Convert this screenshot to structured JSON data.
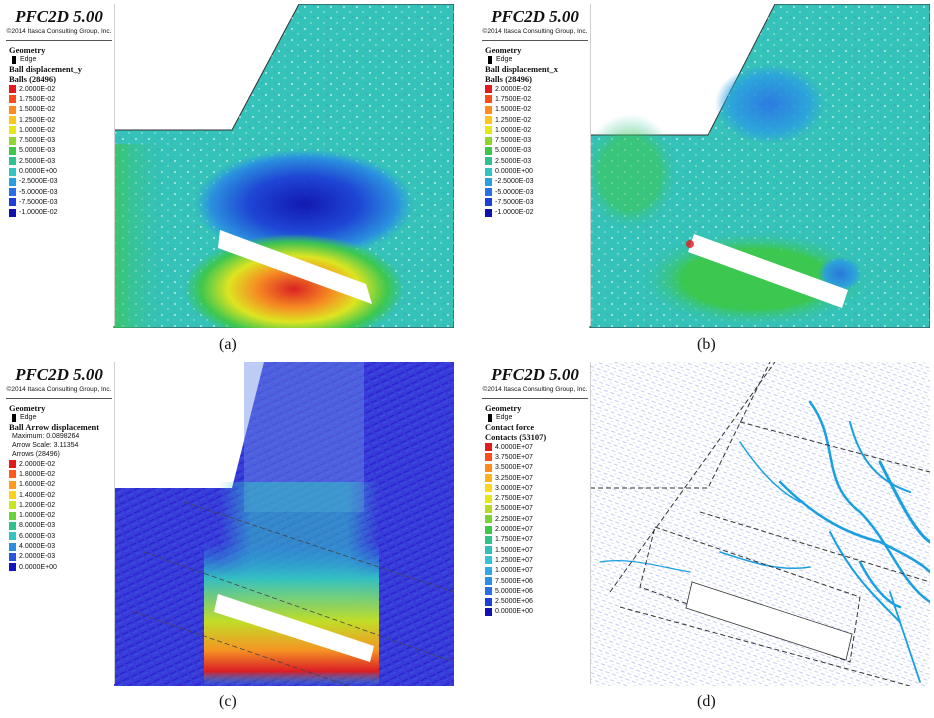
{
  "app_title": "PFC2D 5.00",
  "copyright": "©2014 Itasca Consulting Group, Inc.",
  "geometry_label": "Geometry",
  "edge_label": "Edge",
  "panels": [
    {
      "caption": "(a)",
      "plot_title": "Ball displacement_y",
      "count_label": "Balls (28496)",
      "extra_lines": [],
      "legend": [
        {
          "label": "2.0000E-02",
          "color": "#e31a1c"
        },
        {
          "label": "1.7500E-02",
          "color": "#ff4d1a"
        },
        {
          "label": "1.5000E-02",
          "color": "#ff8c1a"
        },
        {
          "label": "1.2500E-02",
          "color": "#ffc61a"
        },
        {
          "label": "1.0000E-02",
          "color": "#e6e619"
        },
        {
          "label": "7.5000E-03",
          "color": "#8fd62e"
        },
        {
          "label": "5.0000E-03",
          "color": "#3cc74a"
        },
        {
          "label": "2.5000E-03",
          "color": "#2fc28c"
        },
        {
          "label": "0.0000E+00",
          "color": "#33c3c3"
        },
        {
          "label": "-2.5000E-03",
          "color": "#2a9fe0"
        },
        {
          "label": "-5.0000E-03",
          "color": "#2a6fe6"
        },
        {
          "label": "-7.5000E-03",
          "color": "#1d3fd6"
        },
        {
          "label": "-1.0000E-02",
          "color": "#1010b0"
        }
      ]
    },
    {
      "caption": "(b)",
      "plot_title": "Ball displacement_x",
      "count_label": "Balls (28496)",
      "extra_lines": [],
      "legend": [
        {
          "label": "2.0000E-02",
          "color": "#e31a1c"
        },
        {
          "label": "1.7500E-02",
          "color": "#ff4d1a"
        },
        {
          "label": "1.5000E-02",
          "color": "#ff8c1a"
        },
        {
          "label": "1.2500E-02",
          "color": "#ffc61a"
        },
        {
          "label": "1.0000E-02",
          "color": "#e6e619"
        },
        {
          "label": "7.5000E-03",
          "color": "#8fd62e"
        },
        {
          "label": "5.0000E-03",
          "color": "#3cc74a"
        },
        {
          "label": "2.5000E-03",
          "color": "#2fc28c"
        },
        {
          "label": "0.0000E+00",
          "color": "#33c3c3"
        },
        {
          "label": "-2.5000E-03",
          "color": "#2a9fe0"
        },
        {
          "label": "-5.0000E-03",
          "color": "#2a6fe6"
        },
        {
          "label": "-7.5000E-03",
          "color": "#1d3fd6"
        },
        {
          "label": "-1.0000E-02",
          "color": "#1010b0"
        }
      ]
    },
    {
      "caption": "(c)",
      "plot_title": "Ball Arrow displacement",
      "count_label": "",
      "extra_lines": [
        "Maximum: 0.0898264",
        "Arrow Scale: 3.11354",
        "Arrows (28496)"
      ],
      "legend": [
        {
          "label": "2.0000E-02",
          "color": "#e31a1c"
        },
        {
          "label": "1.8000E-02",
          "color": "#ff5a1a"
        },
        {
          "label": "1.6000E-02",
          "color": "#ff9a1a"
        },
        {
          "label": "1.4000E-02",
          "color": "#ffd21a"
        },
        {
          "label": "1.2000E-02",
          "color": "#c8e61e"
        },
        {
          "label": "1.0000E-02",
          "color": "#6ad23a"
        },
        {
          "label": "8.0000E-03",
          "color": "#2fc28c"
        },
        {
          "label": "6.0000E-03",
          "color": "#33c3c3"
        },
        {
          "label": "4.0000E-03",
          "color": "#2a8fe0"
        },
        {
          "label": "2.0000E-03",
          "color": "#2a55e0"
        },
        {
          "label": "0.0000E+00",
          "color": "#1515c0"
        }
      ]
    },
    {
      "caption": "(d)",
      "plot_title": "Contact force",
      "count_label": "Contacts (53107)",
      "extra_lines": [],
      "legend": [
        {
          "label": "4.0000E+07",
          "color": "#e31a1c"
        },
        {
          "label": "3.7500E+07",
          "color": "#ff4d1a"
        },
        {
          "label": "3.5000E+07",
          "color": "#ff8c1a"
        },
        {
          "label": "3.2500E+07",
          "color": "#ffb21a"
        },
        {
          "label": "3.0000E+07",
          "color": "#ffd81a"
        },
        {
          "label": "2.7500E+07",
          "color": "#e6e619"
        },
        {
          "label": "2.5000E+07",
          "color": "#b4dc24"
        },
        {
          "label": "2.2500E+07",
          "color": "#7ad232"
        },
        {
          "label": "2.0000E+07",
          "color": "#3cc74a"
        },
        {
          "label": "1.7500E+07",
          "color": "#2fc28c"
        },
        {
          "label": "1.5000E+07",
          "color": "#30c0b8"
        },
        {
          "label": "1.2500E+07",
          "color": "#33c3d8"
        },
        {
          "label": "1.0000E+07",
          "color": "#30a8e6"
        },
        {
          "label": "7.5000E+06",
          "color": "#2a8fe6"
        },
        {
          "label": "5.0000E+06",
          "color": "#2a6fe6"
        },
        {
          "label": "2.5000E+06",
          "color": "#1d3fd6"
        },
        {
          "label": "0.0000E+00",
          "color": "#1010b0"
        }
      ]
    }
  ]
}
